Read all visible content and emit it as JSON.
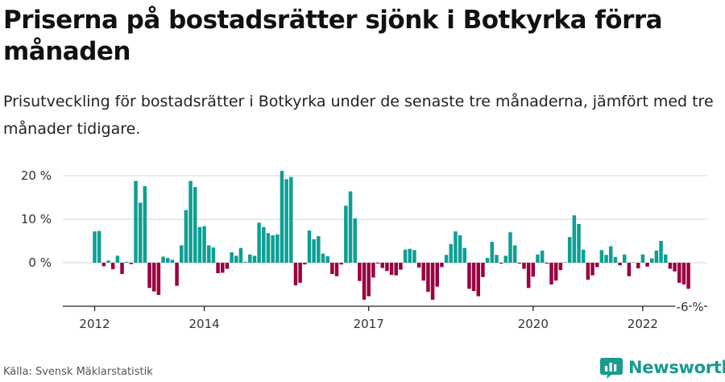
{
  "title": "Priserna på bostadsrätter sjönk i Botkyrka förra månaden",
  "subtitle": "Prisutveckling för bostadsrätter i Botkyrka under de senaste tre månaderna, jämfört med tre månader tidigare.",
  "source": "Källa: Svensk Mäklarstatistik",
  "brand": {
    "name": "Newsworthy"
  },
  "colors": {
    "positive": "#0e9f94",
    "negative": "#9a0040",
    "grid": "#d4d4d4",
    "axis": "#222222",
    "brand": "#1a9a90"
  },
  "chart_data": {
    "type": "bar",
    "ylim": [
      -10,
      22
    ],
    "y_ticks": [
      {
        "value": 20,
        "label": "20 %"
      },
      {
        "value": 10,
        "label": "10 %"
      },
      {
        "value": 0,
        "label": "0 %"
      }
    ],
    "x_ticks": [
      {
        "index": 0,
        "label": "2012"
      },
      {
        "index": 24,
        "label": "2014"
      },
      {
        "index": 60,
        "label": "2017"
      },
      {
        "index": 96,
        "label": "2020"
      },
      {
        "index": 120,
        "label": "2022"
      }
    ],
    "x_start": "2012-01",
    "last_value_label": "-6 %",
    "values": [
      7.2,
      7.3,
      -0.8,
      0.5,
      -1.5,
      1.6,
      -2.6,
      0.2,
      -0.3,
      18.8,
      13.8,
      17.6,
      -5.8,
      -6.6,
      -7.4,
      1.4,
      1.1,
      0.7,
      -5.3,
      4.0,
      12.1,
      18.8,
      17.4,
      8.2,
      8.4,
      4.0,
      3.5,
      -2.4,
      -2.3,
      -1.4,
      2.4,
      1.6,
      3.4,
      0.2,
      1.9,
      1.6,
      9.2,
      8.2,
      6.8,
      6.3,
      6.5,
      21.1,
      19.2,
      19.7,
      -5.2,
      -4.6,
      -0.4,
      7.4,
      5.4,
      6.1,
      2.1,
      1.5,
      -2.6,
      -3.1,
      -0.4,
      13.1,
      16.4,
      10.2,
      -4.2,
      -8.5,
      -7.7,
      -3.4,
      -0.2,
      -1.2,
      -1.9,
      -2.8,
      -2.9,
      -1.6,
      3.0,
      3.2,
      2.9,
      -1.1,
      -4.1,
      -6.7,
      -8.5,
      -5.5,
      -1.0,
      1.8,
      4.3,
      7.2,
      6.3,
      3.4,
      -6.0,
      -6.5,
      -7.7,
      -3.3,
      1.1,
      4.8,
      1.8,
      -0.2,
      1.6,
      7.0,
      4.0,
      -0.2,
      -1.4,
      -5.8,
      -3.2,
      1.9,
      2.8,
      -0.2,
      -5.0,
      -4.1,
      -1.7,
      0.1,
      5.9,
      10.9,
      8.9,
      3.0,
      -3.9,
      -2.9,
      -1.0,
      2.9,
      1.8,
      3.8,
      1.3,
      -0.6,
      1.9,
      -3.1,
      0.1,
      -1.3,
      1.9,
      -0.9,
      1.0,
      2.8,
      5.0,
      1.9,
      -1.4,
      -2.0,
      -4.6,
      -5.0,
      -6.0
    ]
  }
}
